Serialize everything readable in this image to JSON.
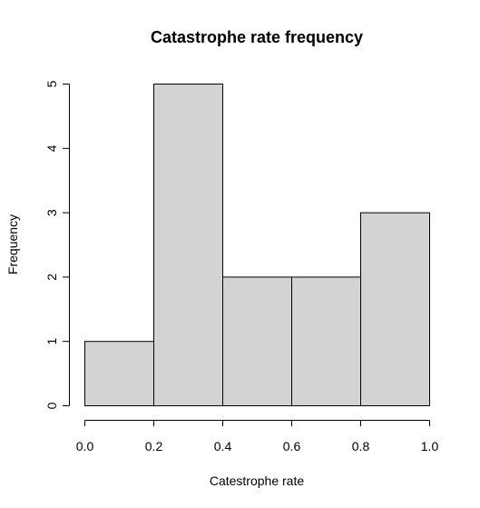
{
  "chart_data": {
    "type": "bar",
    "title": "Catastrophe rate frequency",
    "xlabel": "Catestrophe rate",
    "ylabel": "Frequency",
    "bins": [
      {
        "from": 0.0,
        "to": 0.2,
        "count": 1
      },
      {
        "from": 0.2,
        "to": 0.4,
        "count": 5
      },
      {
        "from": 0.4,
        "to": 0.6,
        "count": 2
      },
      {
        "from": 0.6,
        "to": 0.8,
        "count": 2
      },
      {
        "from": 0.8,
        "to": 1.0,
        "count": 3
      }
    ],
    "xlim": [
      0.0,
      1.0
    ],
    "ylim": [
      0,
      5
    ],
    "x_ticks": [
      {
        "value": 0.0,
        "label": "0.0"
      },
      {
        "value": 0.2,
        "label": "0.2"
      },
      {
        "value": 0.4,
        "label": "0.4"
      },
      {
        "value": 0.6,
        "label": "0.6"
      },
      {
        "value": 0.8,
        "label": "0.8"
      },
      {
        "value": 1.0,
        "label": "1.0"
      }
    ],
    "y_ticks": [
      {
        "value": 0,
        "label": "0"
      },
      {
        "value": 1,
        "label": "1"
      },
      {
        "value": 2,
        "label": "2"
      },
      {
        "value": 3,
        "label": "3"
      },
      {
        "value": 4,
        "label": "4"
      },
      {
        "value": 5,
        "label": "5"
      }
    ],
    "grid": false,
    "colors": {
      "bar_fill": "#d3d3d3",
      "bar_stroke": "#000000",
      "axis": "#000000",
      "background": "#ffffff"
    }
  }
}
